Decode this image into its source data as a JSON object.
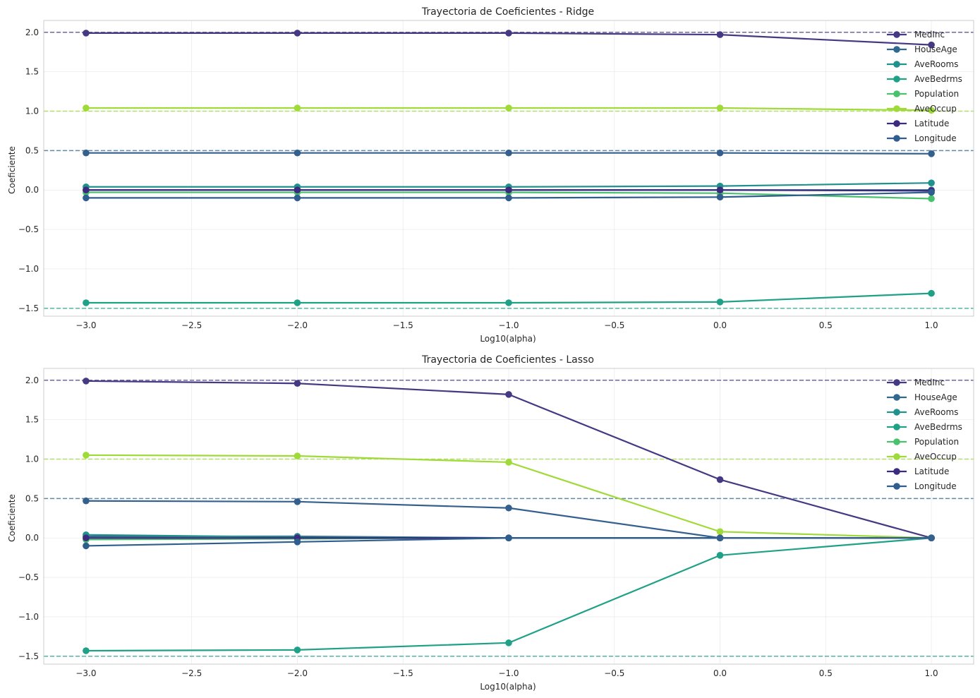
{
  "chart_data": [
    {
      "type": "line",
      "title": "Trayectoria de Coeficientes - Ridge",
      "xlabel": "Log10(alpha)",
      "ylabel": "Coeficiente",
      "x": [
        -3.0,
        -2.0,
        -1.0,
        0.0,
        1.0
      ],
      "xlim": [
        -3.2,
        1.2
      ],
      "ylim": [
        -1.6,
        2.15
      ],
      "xticks": [
        "−3.0",
        "−2.5",
        "−2.0",
        "−1.5",
        "−1.0",
        "−0.5",
        "0.0",
        "0.5",
        "1.0"
      ],
      "yticks": [
        "−1.5",
        "−1.0",
        "−0.5",
        "0.0",
        "0.5",
        "1.0",
        "1.5",
        "2.0"
      ],
      "grid": true,
      "legend_position": "top-right",
      "series": [
        {
          "name": "MedInc",
          "values": [
            1.99,
            1.99,
            1.99,
            1.97,
            1.84
          ],
          "color": "#443983"
        },
        {
          "name": "HouseAge",
          "values": [
            0.0,
            0.0,
            0.0,
            0.0,
            0.0
          ],
          "color": "#31688e"
        },
        {
          "name": "AveRooms",
          "values": [
            0.04,
            0.04,
            0.04,
            0.05,
            0.09
          ],
          "color": "#21918c"
        },
        {
          "name": "AveBedrms",
          "values": [
            -1.43,
            -1.43,
            -1.43,
            -1.42,
            -1.31
          ],
          "color": "#1fa187"
        },
        {
          "name": "Population",
          "values": [
            -0.03,
            -0.03,
            -0.03,
            -0.04,
            -0.11
          ],
          "color": "#4ac16d"
        },
        {
          "name": "AveOccup",
          "values": [
            1.04,
            1.04,
            1.04,
            1.04,
            1.01
          ],
          "color": "#a0da39"
        },
        {
          "name": "Latitude",
          "values": [
            0.0,
            0.0,
            0.0,
            0.0,
            -0.01
          ],
          "color": "#3b2a7e"
        },
        {
          "name": "Longitude",
          "values": [
            -0.1,
            -0.1,
            -0.1,
            -0.09,
            -0.03
          ],
          "color": "#2f5e8e"
        },
        {
          "name": "",
          "values": [
            0.47,
            0.47,
            0.47,
            0.47,
            0.46
          ],
          "color": "#355f8d"
        }
      ],
      "reference_lines": [
        {
          "y": 2.0,
          "color": "#443983"
        },
        {
          "y": 1.0,
          "color": "#a0da39"
        },
        {
          "y": 0.5,
          "color": "#31688e"
        },
        {
          "y": -1.5,
          "color": "#1fa187"
        }
      ]
    },
    {
      "type": "line",
      "title": "Trayectoria de Coeficientes - Lasso",
      "xlabel": "Log10(alpha)",
      "ylabel": "Coeficiente",
      "x": [
        -3.0,
        -2.0,
        -1.0,
        0.0,
        1.0
      ],
      "xlim": [
        -3.2,
        1.2
      ],
      "ylim": [
        -1.6,
        2.15
      ],
      "xticks": [
        "−3.0",
        "−2.5",
        "−2.0",
        "−1.5",
        "−1.0",
        "−0.5",
        "0.0",
        "0.5",
        "1.0"
      ],
      "yticks": [
        "−1.5",
        "−1.0",
        "−0.5",
        "0.0",
        "0.5",
        "1.0",
        "1.5",
        "2.0"
      ],
      "grid": true,
      "legend_position": "top-right",
      "series": [
        {
          "name": "MedInc",
          "values": [
            1.99,
            1.96,
            1.82,
            0.74,
            0.0
          ],
          "color": "#443983"
        },
        {
          "name": "HouseAge",
          "values": [
            0.02,
            0.02,
            0.0,
            0.0,
            0.0
          ],
          "color": "#31688e"
        },
        {
          "name": "AveRooms",
          "values": [
            0.04,
            0.01,
            0.0,
            0.0,
            0.0
          ],
          "color": "#21918c"
        },
        {
          "name": "AveBedrms",
          "values": [
            -1.43,
            -1.42,
            -1.33,
            -0.22,
            0.0
          ],
          "color": "#1fa187"
        },
        {
          "name": "Population",
          "values": [
            -0.02,
            -0.01,
            0.0,
            0.0,
            0.0
          ],
          "color": "#4ac16d"
        },
        {
          "name": "AveOccup",
          "values": [
            1.05,
            1.04,
            0.96,
            0.08,
            0.0
          ],
          "color": "#a0da39"
        },
        {
          "name": "Latitude",
          "values": [
            0.0,
            0.0,
            0.0,
            0.0,
            0.0
          ],
          "color": "#3b2a7e"
        },
        {
          "name": "Longitude",
          "values": [
            -0.1,
            -0.05,
            0.0,
            0.0,
            0.0
          ],
          "color": "#2f5e8e"
        },
        {
          "name": "",
          "values": [
            0.47,
            0.46,
            0.38,
            0.0,
            0.0
          ],
          "color": "#355f8d"
        }
      ],
      "reference_lines": [
        {
          "y": 2.0,
          "color": "#443983"
        },
        {
          "y": 1.0,
          "color": "#a0da39"
        },
        {
          "y": 0.5,
          "color": "#31688e"
        },
        {
          "y": -1.5,
          "color": "#1fa187"
        }
      ]
    }
  ]
}
